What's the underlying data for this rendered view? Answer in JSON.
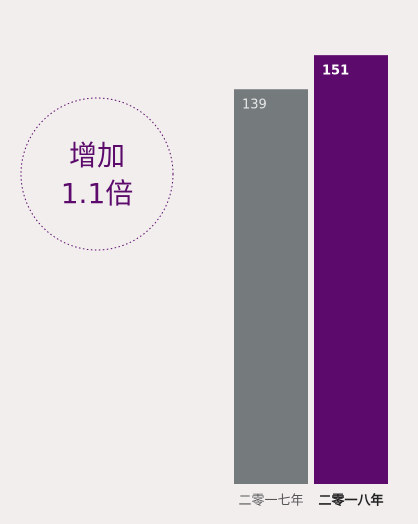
{
  "chart_data": {
    "type": "bar",
    "categories": [
      "二零一七年",
      "二零一八年"
    ],
    "values": [
      139,
      151
    ],
    "colors": [
      "#757b7d",
      "#5c0a6b"
    ],
    "annotations": [
      "增加",
      "1.1倍"
    ]
  }
}
